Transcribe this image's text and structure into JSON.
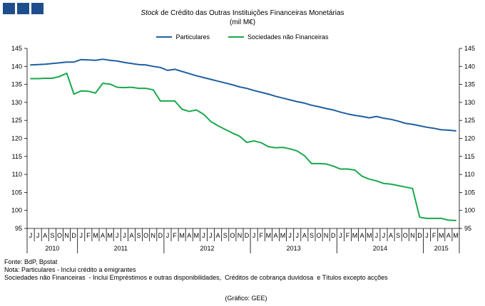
{
  "header": {
    "title_italic": "Stock",
    "title_rest": " de Crédito das Outras Instituições  Financeiras Monetárias",
    "subtitle": "(mil M€)"
  },
  "colors": {
    "particulares": "#1f5fa0",
    "sociedades": "#1aa84a",
    "logo": "#1f4e8c"
  },
  "notes": {
    "source": "Fonte: BdP, Bpstat",
    "note1": "Nota: Particulares - Inclui crédito a emigrantes",
    "note2": "Sociedades não Financeiras  - Inclui Empréstimos e outras disponibilidades,  Créditos de cobrança duvidosa  e Títulos excepto acções"
  },
  "credit": "(Gráfico:  GEE)",
  "chart_data": {
    "type": "line",
    "title": "Stock de Crédito das Outras Instituições  Financeiras Monetárias",
    "ylabel": "(mil M€)",
    "ylim": [
      95,
      145
    ],
    "yticks": [
      95,
      100,
      105,
      110,
      115,
      120,
      125,
      130,
      135,
      140,
      145
    ],
    "grid": false,
    "legend": "top",
    "months": [
      "J",
      "J",
      "A",
      "S",
      "O",
      "N",
      "D",
      "J",
      "F",
      "M",
      "A",
      "M",
      "J",
      "J",
      "A",
      "S",
      "O",
      "N",
      "D",
      "J",
      "F",
      "M",
      "A",
      "M",
      "J",
      "J",
      "A",
      "S",
      "O",
      "N",
      "D",
      "J",
      "F",
      "M",
      "A",
      "M",
      "J",
      "J",
      "A",
      "S",
      "O",
      "N",
      "D",
      "J",
      "F",
      "M",
      "A",
      "M",
      "J",
      "J",
      "A",
      "S",
      "O",
      "N",
      "D",
      "J",
      "F",
      "M",
      "A",
      "M"
    ],
    "years": [
      {
        "label": "2010",
        "count": 7
      },
      {
        "label": "2011",
        "count": 12
      },
      {
        "label": "2012",
        "count": 12
      },
      {
        "label": "2013",
        "count": 12
      },
      {
        "label": "2014",
        "count": 12
      },
      {
        "label": "2015",
        "count": 5
      }
    ],
    "series": [
      {
        "name": "Particulares",
        "color": "#1f5fa0",
        "values": [
          140.4,
          140.5,
          140.6,
          140.8,
          141.0,
          141.2,
          141.2,
          141.9,
          141.8,
          141.7,
          142.0,
          141.7,
          141.5,
          141.1,
          140.8,
          140.5,
          140.4,
          140.0,
          139.7,
          138.9,
          139.2,
          138.6,
          138.0,
          137.4,
          136.9,
          136.4,
          135.9,
          135.4,
          134.9,
          134.3,
          133.9,
          133.3,
          132.8,
          132.3,
          131.7,
          131.2,
          130.7,
          130.2,
          129.8,
          129.2,
          128.8,
          128.3,
          127.9,
          127.3,
          126.8,
          126.4,
          126.1,
          125.7,
          126.1,
          125.6,
          125.3,
          124.8,
          124.2,
          123.9,
          123.5,
          123.1,
          122.8,
          122.4,
          122.3,
          122.1
        ]
      },
      {
        "name": "Sociedades não Financeiras",
        "color": "#1aa84a",
        "values": [
          136.6,
          136.6,
          136.7,
          136.7,
          137.2,
          138.1,
          132.3,
          133.2,
          133.1,
          132.6,
          135.3,
          135.1,
          134.2,
          134.1,
          134.2,
          133.9,
          133.9,
          133.5,
          130.4,
          130.4,
          130.4,
          128.1,
          127.5,
          127.9,
          126.7,
          124.7,
          123.5,
          122.5,
          121.5,
          120.6,
          118.9,
          119.3,
          118.8,
          117.7,
          117.4,
          117.5,
          117.1,
          116.5,
          115.2,
          113.0,
          113.0,
          112.9,
          112.3,
          111.5,
          111.5,
          111.2,
          109.5,
          108.7,
          108.2,
          107.5,
          107.3,
          106.9,
          106.5,
          106.1,
          98.1,
          97.8,
          97.8,
          97.8,
          97.3,
          97.2
        ]
      }
    ]
  }
}
